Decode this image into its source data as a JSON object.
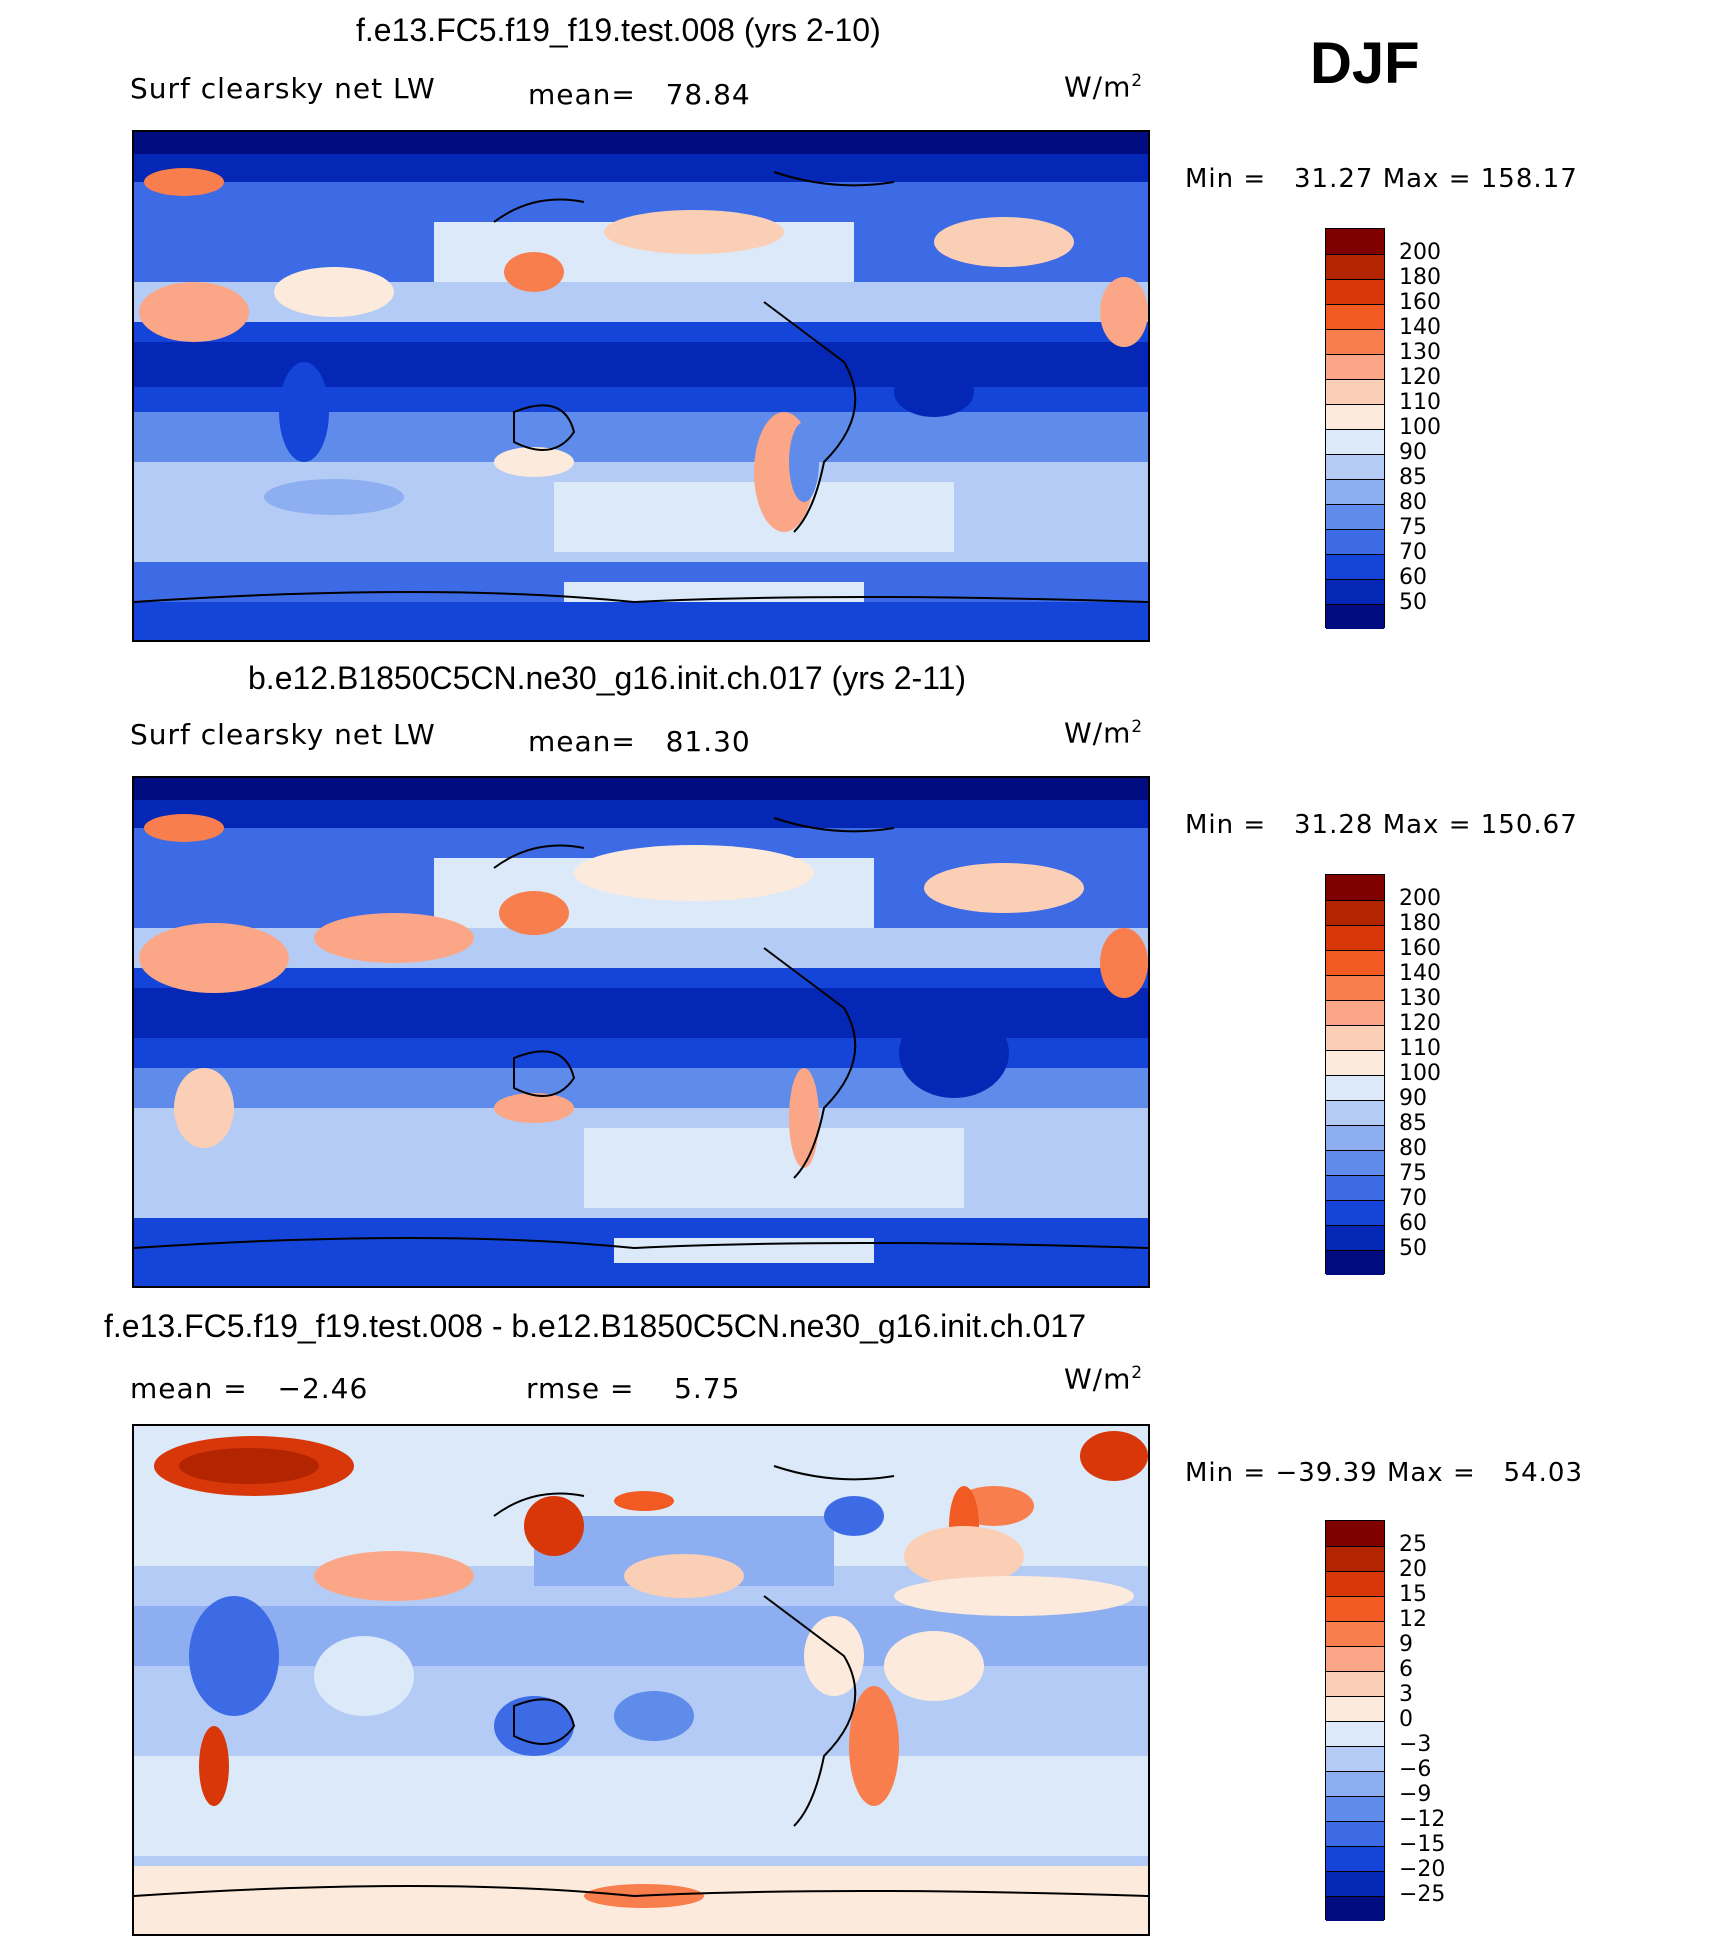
{
  "season": "DJF",
  "chart_data": [
    {
      "type": "heatmap",
      "title": "f.e13.FC5.f19_f19.test.008 (yrs 2-10)",
      "variable": "Surf clearsky net LW",
      "mean_label": "mean=",
      "mean": "78.84",
      "units": "W/m",
      "units_exp": "2",
      "min_label": "Min =",
      "min": "31.27",
      "max_label": "Max =",
      "max": "158.17",
      "colorbar": {
        "levels": [
          "200",
          "180",
          "160",
          "140",
          "130",
          "120",
          "110",
          "100",
          "90",
          "85",
          "80",
          "75",
          "70",
          "60",
          "50"
        ],
        "colors": [
          "#800000",
          "#b22500",
          "#d8370a",
          "#f25a23",
          "#f97e4d",
          "#fba787",
          "#fbcfb5",
          "#fcebdc",
          "#dbe9f8",
          "#b4ccf5",
          "#8daef0",
          "#5f8bea",
          "#3d6be6",
          "#1545d8",
          "#0527b5",
          "#000c80"
        ]
      }
    },
    {
      "type": "heatmap",
      "title": "b.e12.B1850C5CN.ne30_g16.init.ch.017 (yrs 2-11)",
      "variable": "Surf clearsky net LW",
      "mean_label": "mean=",
      "mean": "81.30",
      "units": "W/m",
      "units_exp": "2",
      "min_label": "Min =",
      "min": "31.28",
      "max_label": "Max =",
      "max": "150.67",
      "colorbar": {
        "levels": [
          "200",
          "180",
          "160",
          "140",
          "130",
          "120",
          "110",
          "100",
          "90",
          "85",
          "80",
          "75",
          "70",
          "60",
          "50"
        ],
        "colors": [
          "#800000",
          "#b22500",
          "#d8370a",
          "#f25a23",
          "#f97e4d",
          "#fba787",
          "#fbcfb5",
          "#fcebdc",
          "#dbe9f8",
          "#b4ccf5",
          "#8daef0",
          "#5f8bea",
          "#3d6be6",
          "#1545d8",
          "#0527b5",
          "#000c80"
        ]
      }
    },
    {
      "type": "heatmap",
      "title": "f.e13.FC5.f19_f19.test.008 - b.e12.B1850C5CN.ne30_g16.init.ch.017",
      "mean_label": "mean =",
      "mean": "−2.46",
      "rmse_label": "rmse =",
      "rmse": "5.75",
      "units": "W/m",
      "units_exp": "2",
      "min_label": "Min =",
      "min": "−39.39",
      "max_label": "Max =",
      "max": "54.03",
      "colorbar": {
        "levels": [
          "25",
          "20",
          "15",
          "12",
          "9",
          "6",
          "3",
          "0",
          "−3",
          "−6",
          "−9",
          "−12",
          "−15",
          "−20",
          "−25"
        ],
        "colors": [
          "#800000",
          "#b22500",
          "#d8370a",
          "#f25a23",
          "#f97e4d",
          "#fba787",
          "#fbcfb5",
          "#fcebdc",
          "#dbe9f8",
          "#b4ccf5",
          "#8daef0",
          "#5f8bea",
          "#3d6be6",
          "#1545d8",
          "#0527b5",
          "#000c80"
        ]
      }
    }
  ]
}
